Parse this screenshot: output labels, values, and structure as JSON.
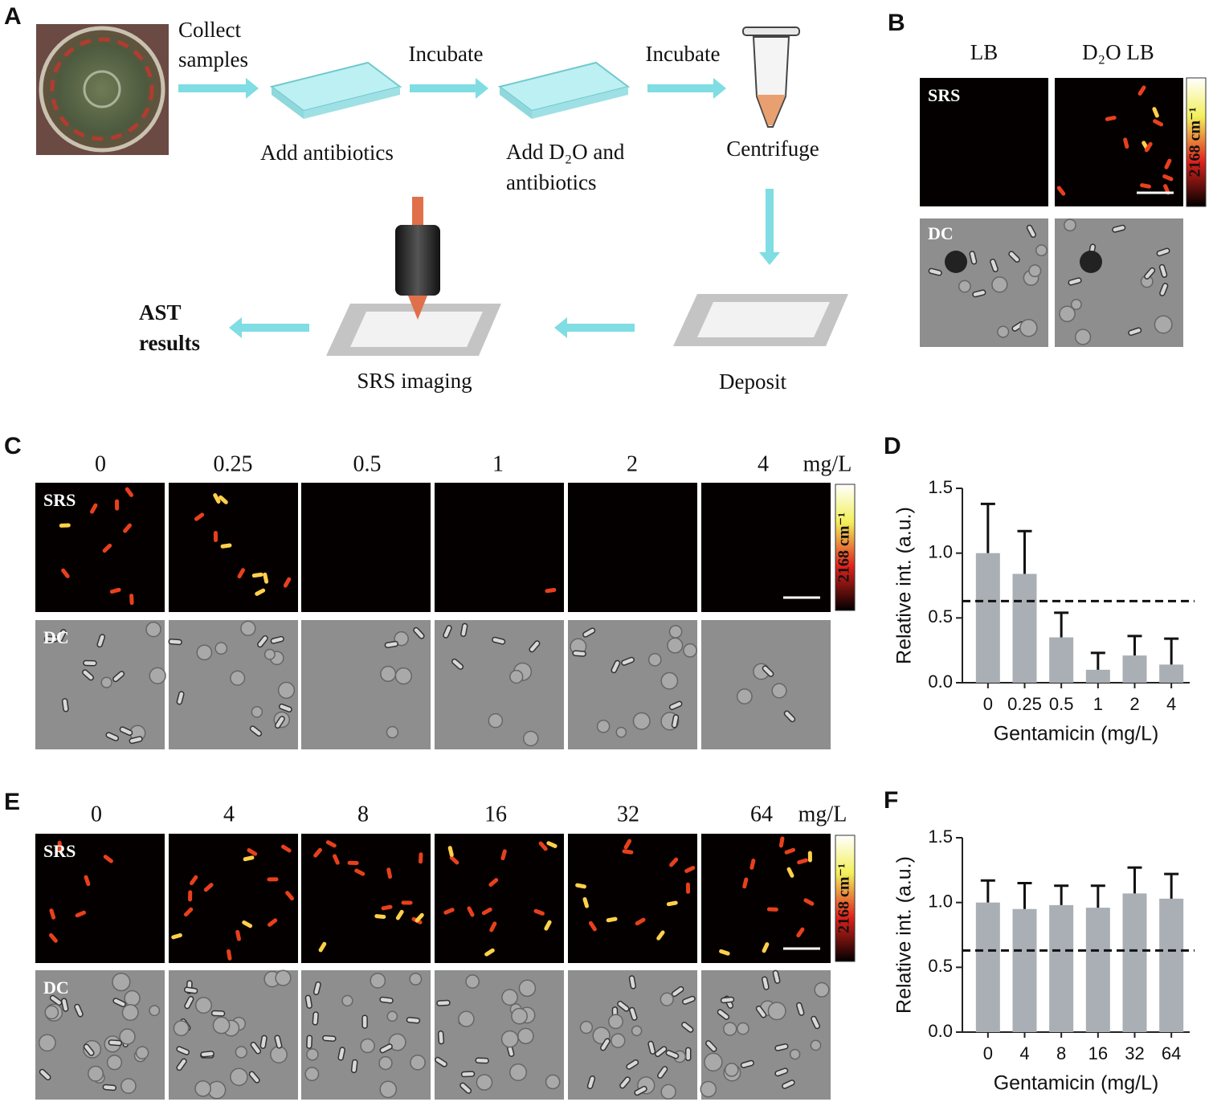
{
  "panel_labels": [
    "A",
    "B",
    "C",
    "D",
    "E",
    "F"
  ],
  "workflow": {
    "collect": [
      "Collect",
      "samples"
    ],
    "incubate_1": "Incubate",
    "add_antibiotics": "Add antibiotics",
    "incubate_2": "Incubate",
    "add_d2o": [
      "Add D₂O and",
      "antibiotics"
    ],
    "centrifuge": "Centrifuge",
    "deposit": "Deposit",
    "srs_imaging": "SRS imaging",
    "ast_results": [
      "AST",
      "results"
    ]
  },
  "panel_b": {
    "columns": [
      "LB",
      "D₂O LB"
    ],
    "rows": [
      "SRS",
      "DC"
    ],
    "colorbar": "2168 cm⁻¹"
  },
  "panel_c": {
    "concentrations": [
      "0",
      "0.25",
      "0.5",
      "1",
      "2",
      "4"
    ],
    "unit": "mg/L",
    "rows": [
      "SRS",
      "DC"
    ],
    "colorbar": "2168 cm⁻¹"
  },
  "panel_e": {
    "concentrations": [
      "0",
      "4",
      "8",
      "16",
      "32",
      "64"
    ],
    "unit": "mg/L",
    "rows": [
      "SRS",
      "DC"
    ],
    "colorbar": "2168 cm⁻¹"
  },
  "chart_data": [
    {
      "type": "bar",
      "ylabel": "Relative int. (a.u.)",
      "xlabel": "Gentamicin (mg/L)",
      "categories": [
        "0",
        "0.25",
        "0.5",
        "1",
        "2",
        "4"
      ],
      "values": [
        1.0,
        0.84,
        0.35,
        0.1,
        0.21,
        0.14
      ],
      "errors": [
        0.38,
        0.33,
        0.19,
        0.13,
        0.15,
        0.2
      ],
      "color": "#a9afb4",
      "threshold": 0.63,
      "ylim": [
        0,
        1.5
      ],
      "yticks": [
        {
          "value": 0,
          "label": "0.0"
        },
        0.5,
        {
          "value": 1,
          "label": "1.0"
        },
        1.5
      ]
    },
    {
      "type": "bar",
      "ylabel": "Relative int. (a.u.)",
      "xlabel": "Gentamicin (mg/L)",
      "categories": [
        "0",
        "4",
        "8",
        "16",
        "32",
        "64"
      ],
      "values": [
        1.0,
        0.95,
        0.98,
        0.96,
        1.07,
        1.03
      ],
      "errors": [
        0.17,
        0.2,
        0.15,
        0.17,
        0.2,
        0.19
      ],
      "color": "#a9afb4",
      "threshold": 0.63,
      "ylim": [
        0,
        1.5
      ],
      "yticks": [
        {
          "value": 0,
          "label": "0.0"
        },
        0.5,
        {
          "value": 1,
          "label": "1.0"
        },
        1.5
      ]
    }
  ]
}
